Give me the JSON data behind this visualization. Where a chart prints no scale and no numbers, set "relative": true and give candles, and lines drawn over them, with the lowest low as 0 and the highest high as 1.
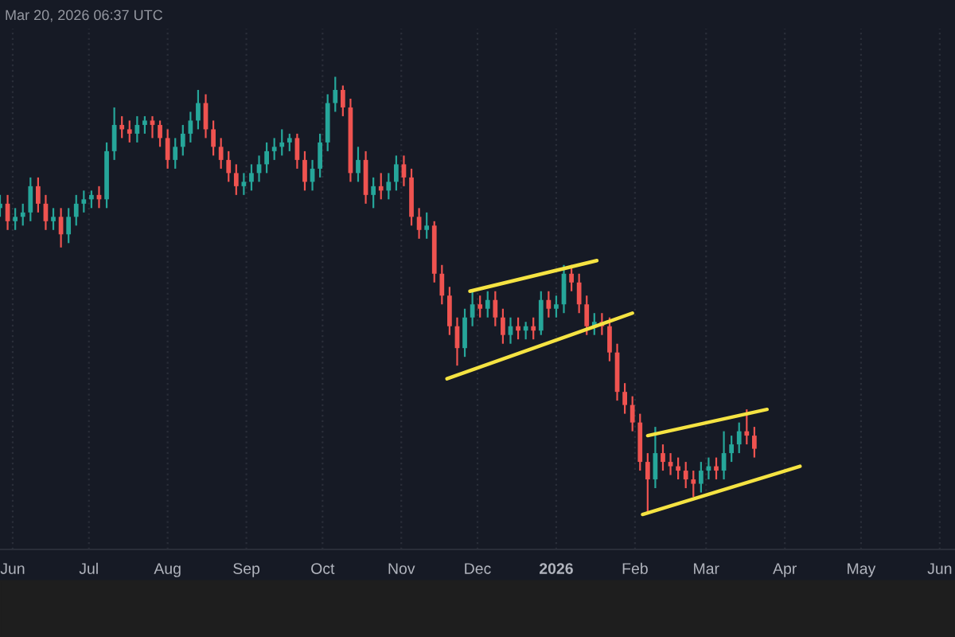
{
  "chart_data": {
    "type": "candlestick",
    "relative": true,
    "annotations": [
      "Mar 20, 2026 06:37 UTC"
    ],
    "x": [
      "2025-05-27",
      "2025-05-30",
      "2025-06-02",
      "2025-06-05",
      "2025-06-08",
      "2025-06-11",
      "2025-06-14",
      "2025-06-17",
      "2025-06-20",
      "2025-06-23",
      "2025-06-26",
      "2025-06-29",
      "2025-07-02",
      "2025-07-05",
      "2025-07-08",
      "2025-07-11",
      "2025-07-14",
      "2025-07-17",
      "2025-07-20",
      "2025-07-23",
      "2025-07-26",
      "2025-07-29",
      "2025-08-01",
      "2025-08-04",
      "2025-08-07",
      "2025-08-10",
      "2025-08-13",
      "2025-08-16",
      "2025-08-19",
      "2025-08-22",
      "2025-08-25",
      "2025-08-28",
      "2025-08-31",
      "2025-09-03",
      "2025-09-06",
      "2025-09-09",
      "2025-09-12",
      "2025-09-15",
      "2025-09-18",
      "2025-09-21",
      "2025-09-24",
      "2025-09-27",
      "2025-09-30",
      "2025-10-03",
      "2025-10-06",
      "2025-10-09",
      "2025-10-12",
      "2025-10-15",
      "2025-10-18",
      "2025-10-21",
      "2025-10-24",
      "2025-10-27",
      "2025-10-30",
      "2025-11-02",
      "2025-11-05",
      "2025-11-08",
      "2025-11-11",
      "2025-11-14",
      "2025-11-17",
      "2025-11-20",
      "2025-11-23",
      "2025-11-26",
      "2025-11-29",
      "2025-12-02",
      "2025-12-05",
      "2025-12-08",
      "2025-12-11",
      "2025-12-14",
      "2025-12-17",
      "2025-12-20",
      "2025-12-23",
      "2025-12-26",
      "2025-12-29",
      "2026-01-01",
      "2026-01-04",
      "2026-01-07",
      "2026-01-10",
      "2026-01-13",
      "2026-01-16",
      "2026-01-19",
      "2026-01-22",
      "2026-01-25",
      "2026-01-28",
      "2026-01-31",
      "2026-02-03",
      "2026-02-06",
      "2026-02-09",
      "2026-02-12",
      "2026-02-15",
      "2026-02-18",
      "2026-02-21",
      "2026-02-24",
      "2026-02-27",
      "2026-03-02",
      "2026-03-05",
      "2026-03-08",
      "2026-03-11",
      "2026-03-14",
      "2026-03-17",
      "2026-03-20"
    ],
    "ohlc": [
      [
        0.7,
        0.73,
        0.68,
        0.71
      ],
      [
        0.71,
        0.73,
        0.65,
        0.67
      ],
      [
        0.67,
        0.7,
        0.65,
        0.68
      ],
      [
        0.68,
        0.71,
        0.66,
        0.69
      ],
      [
        0.69,
        0.77,
        0.67,
        0.75
      ],
      [
        0.75,
        0.77,
        0.69,
        0.71
      ],
      [
        0.71,
        0.73,
        0.65,
        0.67
      ],
      [
        0.67,
        0.7,
        0.65,
        0.68
      ],
      [
        0.68,
        0.7,
        0.61,
        0.64
      ],
      [
        0.64,
        0.7,
        0.62,
        0.68
      ],
      [
        0.68,
        0.73,
        0.66,
        0.71
      ],
      [
        0.71,
        0.74,
        0.69,
        0.72
      ],
      [
        0.72,
        0.74,
        0.7,
        0.73
      ],
      [
        0.73,
        0.75,
        0.7,
        0.72
      ],
      [
        0.72,
        0.85,
        0.7,
        0.83
      ],
      [
        0.83,
        0.93,
        0.81,
        0.89
      ],
      [
        0.89,
        0.91,
        0.86,
        0.88
      ],
      [
        0.88,
        0.9,
        0.85,
        0.87
      ],
      [
        0.87,
        0.91,
        0.85,
        0.89
      ],
      [
        0.89,
        0.91,
        0.87,
        0.9
      ],
      [
        0.9,
        0.91,
        0.86,
        0.89
      ],
      [
        0.89,
        0.9,
        0.84,
        0.86
      ],
      [
        0.86,
        0.88,
        0.79,
        0.81
      ],
      [
        0.81,
        0.86,
        0.79,
        0.84
      ],
      [
        0.84,
        0.89,
        0.82,
        0.87
      ],
      [
        0.87,
        0.92,
        0.85,
        0.9
      ],
      [
        0.9,
        0.97,
        0.88,
        0.94
      ],
      [
        0.94,
        0.96,
        0.86,
        0.88
      ],
      [
        0.88,
        0.9,
        0.82,
        0.84
      ],
      [
        0.84,
        0.86,
        0.79,
        0.81
      ],
      [
        0.81,
        0.83,
        0.76,
        0.78
      ],
      [
        0.78,
        0.8,
        0.73,
        0.75
      ],
      [
        0.75,
        0.78,
        0.73,
        0.76
      ],
      [
        0.76,
        0.8,
        0.74,
        0.78
      ],
      [
        0.78,
        0.82,
        0.76,
        0.8
      ],
      [
        0.8,
        0.85,
        0.78,
        0.83
      ],
      [
        0.83,
        0.86,
        0.81,
        0.84
      ],
      [
        0.84,
        0.88,
        0.82,
        0.85
      ],
      [
        0.85,
        0.87,
        0.83,
        0.86
      ],
      [
        0.86,
        0.87,
        0.79,
        0.81
      ],
      [
        0.81,
        0.83,
        0.74,
        0.76
      ],
      [
        0.76,
        0.81,
        0.74,
        0.79
      ],
      [
        0.79,
        0.87,
        0.77,
        0.85
      ],
      [
        0.85,
        0.96,
        0.83,
        0.94
      ],
      [
        0.94,
        1,
        0.92,
        0.97
      ],
      [
        0.97,
        0.98,
        0.91,
        0.93
      ],
      [
        0.93,
        0.95,
        0.76,
        0.78
      ],
      [
        0.78,
        0.84,
        0.76,
        0.81
      ],
      [
        0.81,
        0.83,
        0.71,
        0.73
      ],
      [
        0.73,
        0.77,
        0.7,
        0.75
      ],
      [
        0.75,
        0.78,
        0.72,
        0.74
      ],
      [
        0.74,
        0.78,
        0.72,
        0.76
      ],
      [
        0.76,
        0.82,
        0.74,
        0.8
      ],
      [
        0.8,
        0.82,
        0.75,
        0.77
      ],
      [
        0.77,
        0.79,
        0.66,
        0.68
      ],
      [
        0.68,
        0.7,
        0.63,
        0.65
      ],
      [
        0.65,
        0.69,
        0.63,
        0.66
      ],
      [
        0.66,
        0.67,
        0.53,
        0.55
      ],
      [
        0.55,
        0.57,
        0.48,
        0.5
      ],
      [
        0.5,
        0.52,
        0.41,
        0.43
      ],
      [
        0.43,
        0.45,
        0.34,
        0.38
      ],
      [
        0.38,
        0.47,
        0.36,
        0.45
      ],
      [
        0.45,
        0.51,
        0.43,
        0.48
      ],
      [
        0.48,
        0.5,
        0.45,
        0.47
      ],
      [
        0.47,
        0.51,
        0.45,
        0.49
      ],
      [
        0.49,
        0.51,
        0.43,
        0.45
      ],
      [
        0.45,
        0.47,
        0.39,
        0.41
      ],
      [
        0.41,
        0.45,
        0.39,
        0.43
      ],
      [
        0.43,
        0.45,
        0.4,
        0.42
      ],
      [
        0.42,
        0.44,
        0.4,
        0.43
      ],
      [
        0.43,
        0.45,
        0.4,
        0.42
      ],
      [
        0.42,
        0.51,
        0.41,
        0.49
      ],
      [
        0.49,
        0.51,
        0.45,
        0.47
      ],
      [
        0.47,
        0.5,
        0.45,
        0.48
      ],
      [
        0.48,
        0.57,
        0.46,
        0.55
      ],
      [
        0.55,
        0.57,
        0.51,
        0.53
      ],
      [
        0.53,
        0.55,
        0.46,
        0.48
      ],
      [
        0.48,
        0.5,
        0.41,
        0.43
      ],
      [
        0.43,
        0.46,
        0.41,
        0.44
      ],
      [
        0.44,
        0.46,
        0.41,
        0.43
      ],
      [
        0.43,
        0.45,
        0.35,
        0.37
      ],
      [
        0.37,
        0.39,
        0.26,
        0.28
      ],
      [
        0.28,
        0.3,
        0.23,
        0.25
      ],
      [
        0.25,
        0.27,
        0.19,
        0.21
      ],
      [
        0.21,
        0.23,
        0.1,
        0.12
      ],
      [
        0.12,
        0.14,
        0,
        0.08
      ],
      [
        0.08,
        0.2,
        0.06,
        0.14
      ],
      [
        0.14,
        0.16,
        0.1,
        0.12
      ],
      [
        0.12,
        0.14,
        0.09,
        0.11
      ],
      [
        0.11,
        0.13,
        0.08,
        0.1
      ],
      [
        0.1,
        0.12,
        0.06,
        0.08
      ],
      [
        0.08,
        0.1,
        0.04,
        0.07
      ],
      [
        0.07,
        0.12,
        0.05,
        0.1
      ],
      [
        0.1,
        0.13,
        0.08,
        0.11
      ],
      [
        0.11,
        0.13,
        0.08,
        0.1
      ],
      [
        0.1,
        0.19,
        0.08,
        0.14
      ],
      [
        0.14,
        0.18,
        0.12,
        0.16
      ],
      [
        0.16,
        0.21,
        0.14,
        0.19
      ],
      [
        0.19,
        0.24,
        0.16,
        0.18
      ],
      [
        0.18,
        0.2,
        0.13,
        0.15
      ]
    ],
    "colors": [
      "#26a69a",
      "#ef5350",
      "#26a69a",
      "#26a69a",
      "#26a69a",
      "#ef5350",
      "#ef5350",
      "#26a69a",
      "#ef5350",
      "#26a69a",
      "#26a69a",
      "#26a69a",
      "#26a69a",
      "#ef5350",
      "#26a69a",
      "#26a69a",
      "#ef5350",
      "#ef5350",
      "#26a69a",
      "#26a69a",
      "#ef5350",
      "#ef5350",
      "#ef5350",
      "#26a69a",
      "#26a69a",
      "#26a69a",
      "#26a69a",
      "#ef5350",
      "#ef5350",
      "#ef5350",
      "#ef5350",
      "#ef5350",
      "#26a69a",
      "#26a69a",
      "#26a69a",
      "#26a69a",
      "#26a69a",
      "#26a69a",
      "#26a69a",
      "#ef5350",
      "#ef5350",
      "#26a69a",
      "#26a69a",
      "#26a69a",
      "#26a69a",
      "#ef5350",
      "#ef5350",
      "#26a69a",
      "#ef5350",
      "#26a69a",
      "#ef5350",
      "#26a69a",
      "#26a69a",
      "#ef5350",
      "#ef5350",
      "#ef5350",
      "#26a69a",
      "#ef5350",
      "#ef5350",
      "#ef5350",
      "#ef5350",
      "#26a69a",
      "#26a69a",
      "#ef5350",
      "#26a69a",
      "#ef5350",
      "#ef5350",
      "#26a69a",
      "#ef5350",
      "#26a69a",
      "#ef5350",
      "#26a69a",
      "#ef5350",
      "#26a69a",
      "#26a69a",
      "#ef5350",
      "#ef5350",
      "#ef5350",
      "#26a69a",
      "#ef5350",
      "#ef5350",
      "#ef5350",
      "#ef5350",
      "#ef5350",
      "#ef5350",
      "#ef5350",
      "#26a69a",
      "#ef5350",
      "#ef5350",
      "#ef5350",
      "#ef5350",
      "#ef5350",
      "#26a69a",
      "#26a69a",
      "#ef5350",
      "#26a69a",
      "#26a69a",
      "#26a69a",
      "#ef5350",
      "#ef5350"
    ],
    "series": [
      {
        "type": "line",
        "color": "#f5e342",
        "x": [
          "2025-11-28",
          "2026-01-17"
        ],
        "values": [
          0.51,
          0.58
        ]
      },
      {
        "type": "line",
        "color": "#f5e342",
        "x": [
          "2025-11-19",
          "2026-01-31"
        ],
        "values": [
          0.31,
          0.46
        ]
      },
      {
        "type": "line",
        "color": "#f5e342",
        "x": [
          "2026-02-06",
          "2026-03-25"
        ],
        "values": [
          0.18,
          0.24
        ]
      },
      {
        "type": "line",
        "color": "#f5e342",
        "x": [
          "2026-02-04",
          "2026-04-07"
        ],
        "values": [
          0,
          0.11
        ]
      }
    ],
    "xlim": [
      "2025-05-27",
      "2026-06-07"
    ],
    "xticks": [
      {
        "value": "2025-06-01",
        "label": "Jun"
      },
      {
        "value": "2025-07-01",
        "label": "Jul"
      },
      {
        "value": "2025-08-01",
        "label": "Aug"
      },
      {
        "value": "2025-09-01",
        "label": "Sep"
      },
      {
        "value": "2025-10-01",
        "label": "Oct"
      },
      {
        "value": "2025-11-01",
        "label": "Nov"
      },
      {
        "value": "2025-12-01",
        "label": "Dec"
      },
      {
        "value": "2026-01-01",
        "label": "2026"
      },
      {
        "value": "2026-02-01",
        "label": "Feb"
      },
      {
        "value": "2026-03-01",
        "label": "Mar"
      },
      {
        "value": "2026-04-01",
        "label": "Apr"
      },
      {
        "value": "2026-05-01",
        "label": "May"
      },
      {
        "value": "2026-06-01",
        "label": "Jun"
      }
    ],
    "tick_labels": "x",
    "grid": "x",
    "legend": false,
    "line_style": "solid",
    "marker": "none"
  }
}
